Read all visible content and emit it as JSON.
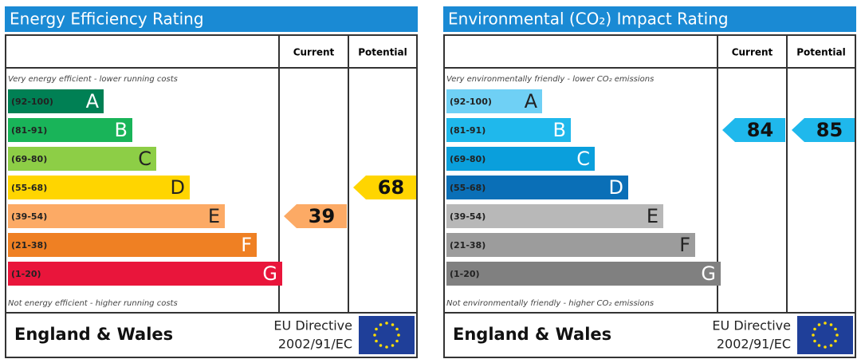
{
  "panels": [
    {
      "title": "Energy Efficiency Rating",
      "columns": [
        "Current",
        "Potential"
      ],
      "top_note": "Very energy efficient - lower running costs",
      "bottom_note": "Not energy efficient - higher running costs",
      "bands": [
        {
          "range": "(92-100)",
          "letter": "A",
          "color": "#008054"
        },
        {
          "range": "(81-91)",
          "letter": "B",
          "color": "#19b459"
        },
        {
          "range": "(69-80)",
          "letter": "C",
          "color": "#8dce46"
        },
        {
          "range": "(55-68)",
          "letter": "D",
          "color": "#ffd500"
        },
        {
          "range": "(39-54)",
          "letter": "E",
          "color": "#fcaa65"
        },
        {
          "range": "(21-38)",
          "letter": "F",
          "color": "#ef8023"
        },
        {
          "range": "(1-20)",
          "letter": "G",
          "color": "#e9153b"
        }
      ],
      "current": 39,
      "potential": 68,
      "region": "England & Wales",
      "directive": [
        "EU Directive",
        "2002/91/EC"
      ]
    },
    {
      "title": "Environmental (CO₂) Impact Rating",
      "columns": [
        "Current",
        "Potential"
      ],
      "top_note": "Very environmentally friendly - lower CO₂ emissions",
      "bottom_note": "Not environmentally friendly - higher CO₂ emissions",
      "bands": [
        {
          "range": "(92-100)",
          "letter": "A",
          "color": "#6fd0f5"
        },
        {
          "range": "(81-91)",
          "letter": "B",
          "color": "#1fb8ec"
        },
        {
          "range": "(69-80)",
          "letter": "C",
          "color": "#0a9fdc"
        },
        {
          "range": "(55-68)",
          "letter": "D",
          "color": "#0a6fb7"
        },
        {
          "range": "(39-54)",
          "letter": "E",
          "color": "#b8b8b8"
        },
        {
          "range": "(21-38)",
          "letter": "F",
          "color": "#9c9c9c"
        },
        {
          "range": "(1-20)",
          "letter": "G",
          "color": "#808080"
        }
      ],
      "current": 84,
      "potential": 85,
      "region": "England & Wales",
      "directive": [
        "EU Directive",
        "2002/91/EC"
      ]
    }
  ]
}
